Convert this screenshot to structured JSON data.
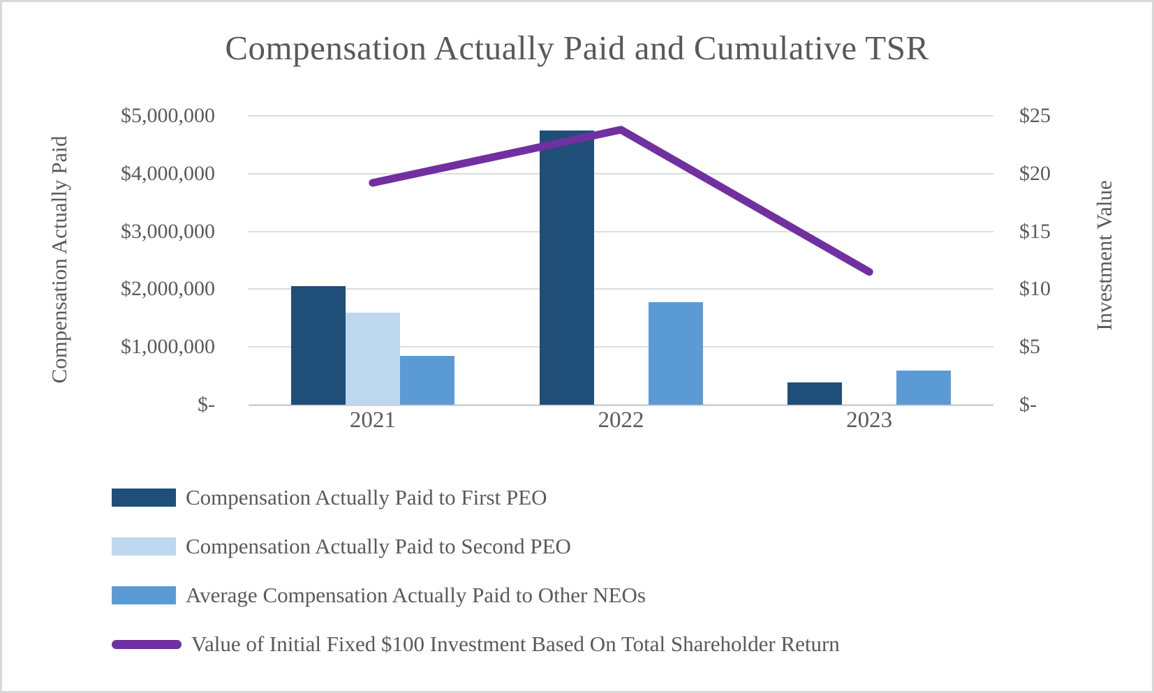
{
  "chart_data": {
    "type": "combo-bar-line",
    "title": "Compensation Actually Paid and Cumulative TSR",
    "categories": [
      "2021",
      "2022",
      "2023"
    ],
    "bar_series": [
      {
        "name": "Compensation Actually Paid to First PEO",
        "color": "#1F4E79",
        "values": [
          2050000,
          4750000,
          390000
        ]
      },
      {
        "name": "Compensation Actually Paid to Second PEO",
        "color": "#BDD7EE",
        "values": [
          1600000,
          0,
          0
        ]
      },
      {
        "name": "Average Compensation Actually Paid to Other NEOs",
        "color": "#5B9BD5",
        "values": [
          850000,
          1780000,
          590000
        ]
      }
    ],
    "line_series": {
      "name": "Value of Initial Fixed $100 Investment Based On Total Shareholder Return",
      "color": "#7030A0",
      "axis": "right",
      "values": [
        19.2,
        23.8,
        11.5
      ]
    },
    "left_axis": {
      "title": "Compensation Actually Paid",
      "min": 0,
      "max": 5000000,
      "ticks": [
        "$5,000,000",
        "$4,000,000",
        "$3,000,000",
        "$2,000,000",
        "$1,000,000",
        "$-"
      ]
    },
    "right_axis": {
      "title": "Investment Value",
      "min": 0,
      "max": 25,
      "ticks": [
        "$25",
        "$20",
        "$15",
        "$10",
        "$5",
        "$-"
      ]
    },
    "grid": true,
    "legend_position": "bottom-left",
    "colors": {
      "gridline": "#DCDCDC",
      "axis_line": "#D3D3D3",
      "text": "#595959",
      "frame_border": "#D9D9D9",
      "background": "#FFFFFF"
    }
  }
}
